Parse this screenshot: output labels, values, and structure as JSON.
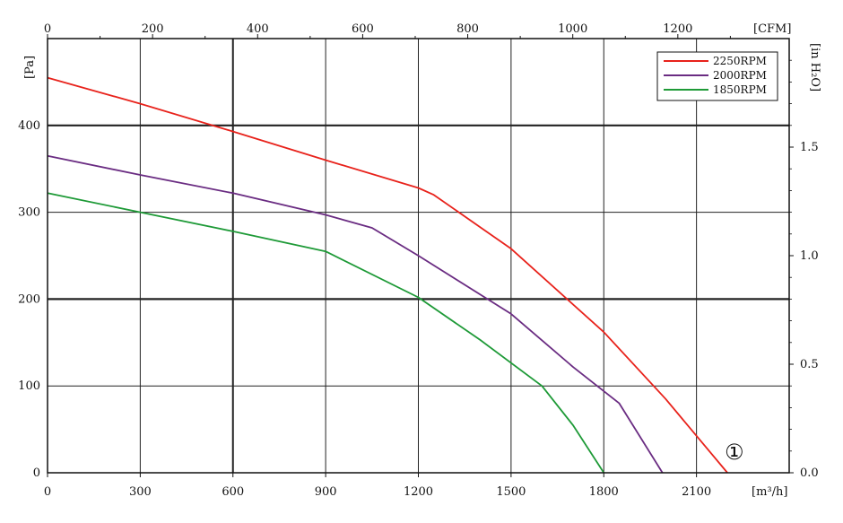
{
  "chart_data": {
    "type": "line",
    "x_bottom": {
      "unit_label": "[m³/h]",
      "ticks": [
        "0",
        "300",
        "600",
        "900",
        "1200",
        "1500",
        "1800",
        "2100"
      ],
      "range": [
        0,
        2400
      ]
    },
    "x_top": {
      "unit_label": "[CFM]",
      "ticks": [
        "0",
        "200",
        "400",
        "600",
        "800",
        "1000",
        "1200"
      ],
      "range": [
        0,
        1412
      ]
    },
    "y_left": {
      "unit_label": "[Pa]",
      "ticks": [
        "0",
        "100",
        "200",
        "300",
        "400"
      ],
      "range": [
        0,
        500
      ]
    },
    "y_right": {
      "unit_label": "[in H₂O]",
      "ticks": [
        "0.0",
        "0.5",
        "1.0",
        "1.5"
      ],
      "range": [
        0,
        2.0
      ]
    },
    "grid": true,
    "legend_position": "top-right",
    "marker_label": "①",
    "series": [
      {
        "name": "2250RPM",
        "color": "#e8221b",
        "points": [
          [
            0,
            455
          ],
          [
            300,
            425
          ],
          [
            600,
            393
          ],
          [
            900,
            360
          ],
          [
            1200,
            328
          ],
          [
            1250,
            320
          ],
          [
            1500,
            258
          ],
          [
            1800,
            162
          ],
          [
            2000,
            85
          ],
          [
            2200,
            0
          ]
        ]
      },
      {
        "name": "2000RPM",
        "color": "#6a2c82",
        "points": [
          [
            0,
            365
          ],
          [
            300,
            343
          ],
          [
            600,
            322
          ],
          [
            900,
            297
          ],
          [
            1050,
            282
          ],
          [
            1200,
            250
          ],
          [
            1500,
            183
          ],
          [
            1700,
            122
          ],
          [
            1850,
            80
          ],
          [
            1990,
            0
          ]
        ]
      },
      {
        "name": "1850RPM",
        "color": "#1e9a37",
        "points": [
          [
            0,
            322
          ],
          [
            300,
            300
          ],
          [
            600,
            278
          ],
          [
            900,
            255
          ],
          [
            1200,
            202
          ],
          [
            1400,
            153
          ],
          [
            1600,
            100
          ],
          [
            1700,
            55
          ],
          [
            1800,
            0
          ]
        ]
      }
    ]
  }
}
